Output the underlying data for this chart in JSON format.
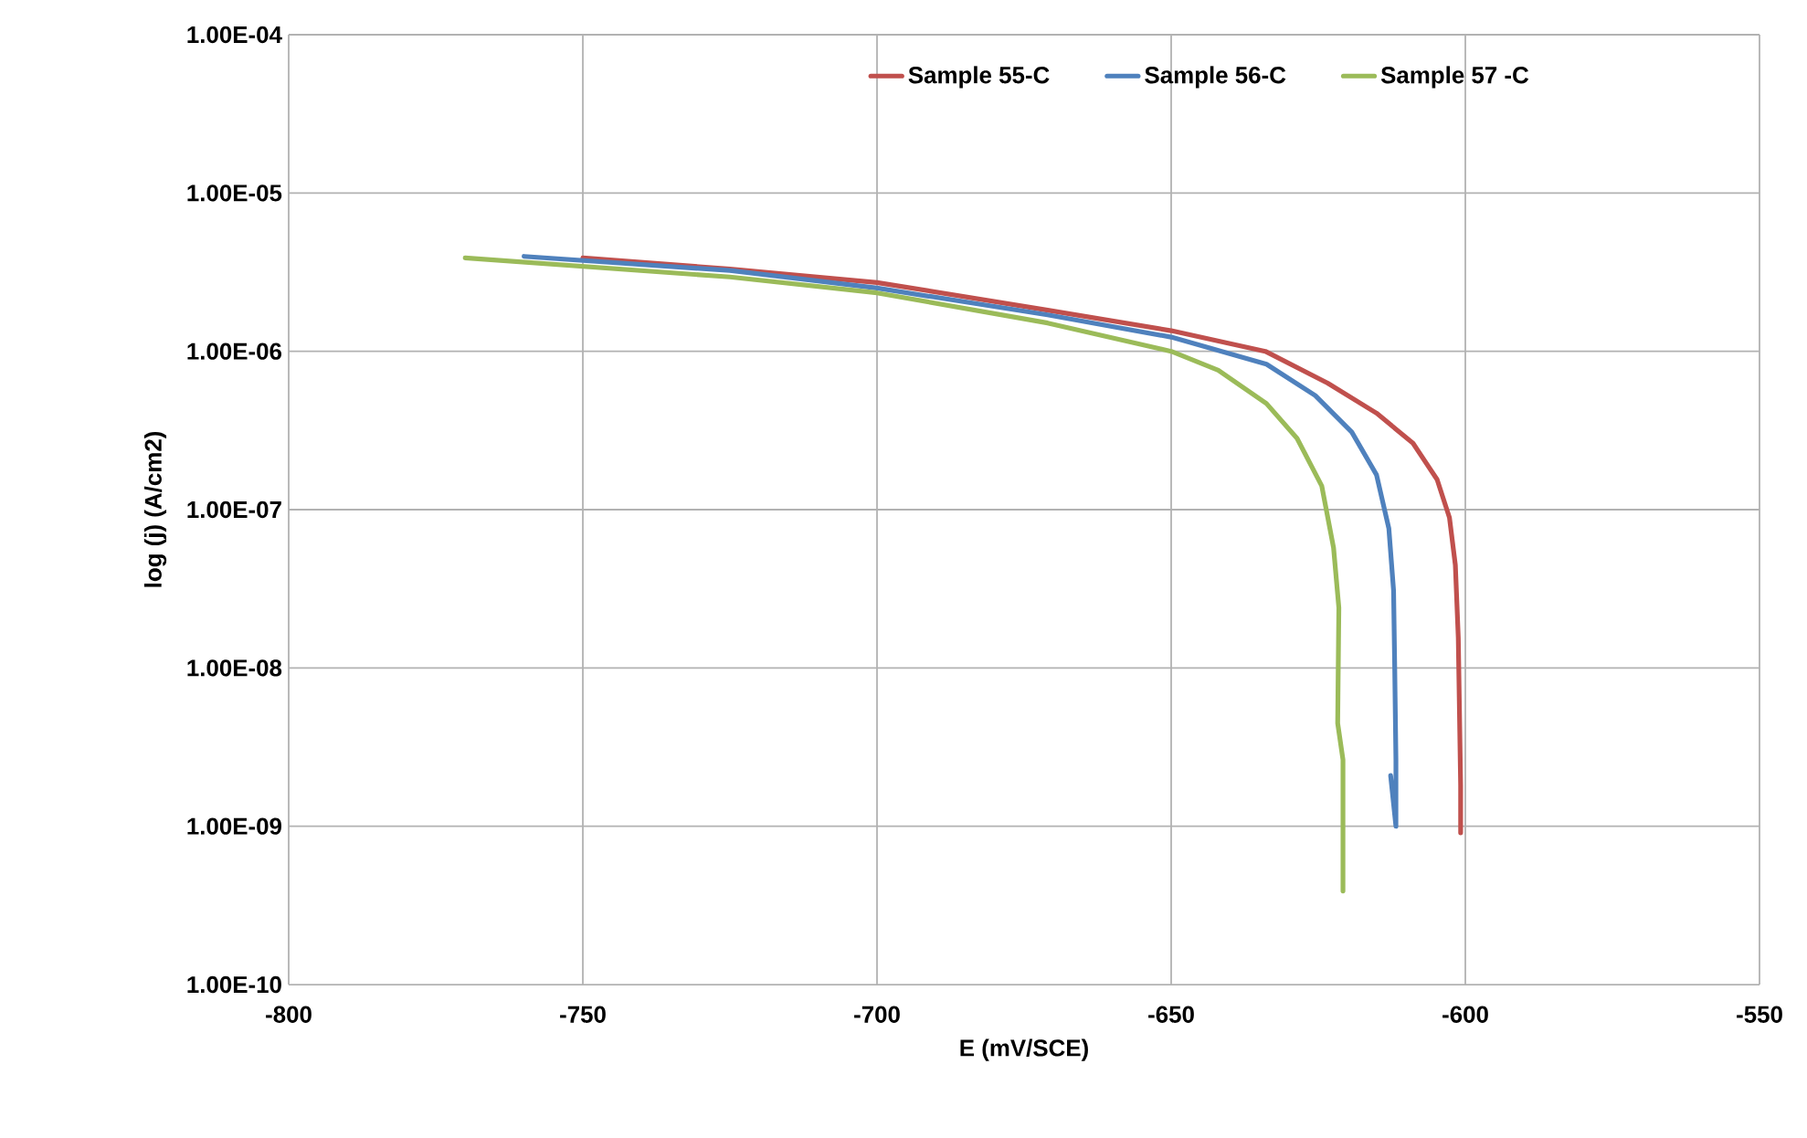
{
  "chart_data": {
    "type": "line",
    "xlabel": "E (mV/SCE)",
    "ylabel": "log (j) (A/cm2)",
    "log": "y",
    "grid": true,
    "legend": "top",
    "marker": "none",
    "line_style": "solid",
    "xlim": [
      -800,
      -550
    ],
    "xticks": [
      -800,
      -750,
      -700,
      -650,
      -600,
      -550
    ],
    "ylim": [
      1e-10,
      0.0001
    ],
    "yticks": [
      {
        "value": 1e-10,
        "label": "1.00E-10"
      },
      {
        "value": 1e-09,
        "label": "1.00E-09"
      },
      {
        "value": 1e-08,
        "label": "1.00E-08"
      },
      {
        "value": 1e-07,
        "label": "1.00E-07"
      },
      {
        "value": 1e-06,
        "label": "1.00E-06"
      },
      {
        "value": 1e-05,
        "label": "1.00E-05"
      },
      {
        "value": 0.0001,
        "label": "1.00E-04"
      }
    ],
    "series": [
      {
        "name": "Sample 55-C",
        "color": "#c0504d",
        "x": [
          -750,
          -725,
          -700,
          -671,
          -650,
          -634,
          -623.4,
          -615.1,
          -608.9,
          -604.8,
          -602.7,
          -601.7,
          -601.2,
          -600.8,
          -600.8
        ],
        "values": [
          3.89e-06,
          3.31e-06,
          2.72e-06,
          1.82e-06,
          1.35e-06,
          1e-06,
          6.3e-07,
          4.07e-07,
          2.63e-07,
          1.55e-07,
          8.9e-08,
          4.47e-08,
          1.55e-08,
          1.82e-09,
          9.1e-10
        ]
      },
      {
        "name": "Sample 56-C",
        "color": "#4f81bd",
        "x": [
          -760,
          -725,
          -700,
          -671,
          -650,
          -633.8,
          -625.5,
          -619.3,
          -615.1,
          -613,
          -612.2,
          -612,
          -611.8,
          -611.8,
          -612.7
        ],
        "values": [
          3.98e-06,
          3.24e-06,
          2.51e-06,
          1.7e-06,
          1.23e-06,
          8.3e-07,
          5.25e-07,
          3.09e-07,
          1.66e-07,
          7.6e-08,
          3.09e-08,
          9.8e-09,
          2.63e-09,
          1e-09,
          2.09e-09
        ]
      },
      {
        "name": "Sample 57 -C",
        "color": "#9bbb59",
        "x": [
          -770,
          -725,
          -700,
          -671,
          -650,
          -642,
          -633.8,
          -628.6,
          -624.4,
          -622.4,
          -621.5,
          -621.7,
          -620.8,
          -620.8
        ],
        "values": [
          3.89e-06,
          2.95e-06,
          2.34e-06,
          1.51e-06,
          1e-06,
          7.6e-07,
          4.68e-07,
          2.82e-07,
          1.41e-07,
          5.75e-08,
          2.4e-08,
          4.47e-09,
          2.63e-09,
          3.9e-10
        ]
      }
    ]
  }
}
